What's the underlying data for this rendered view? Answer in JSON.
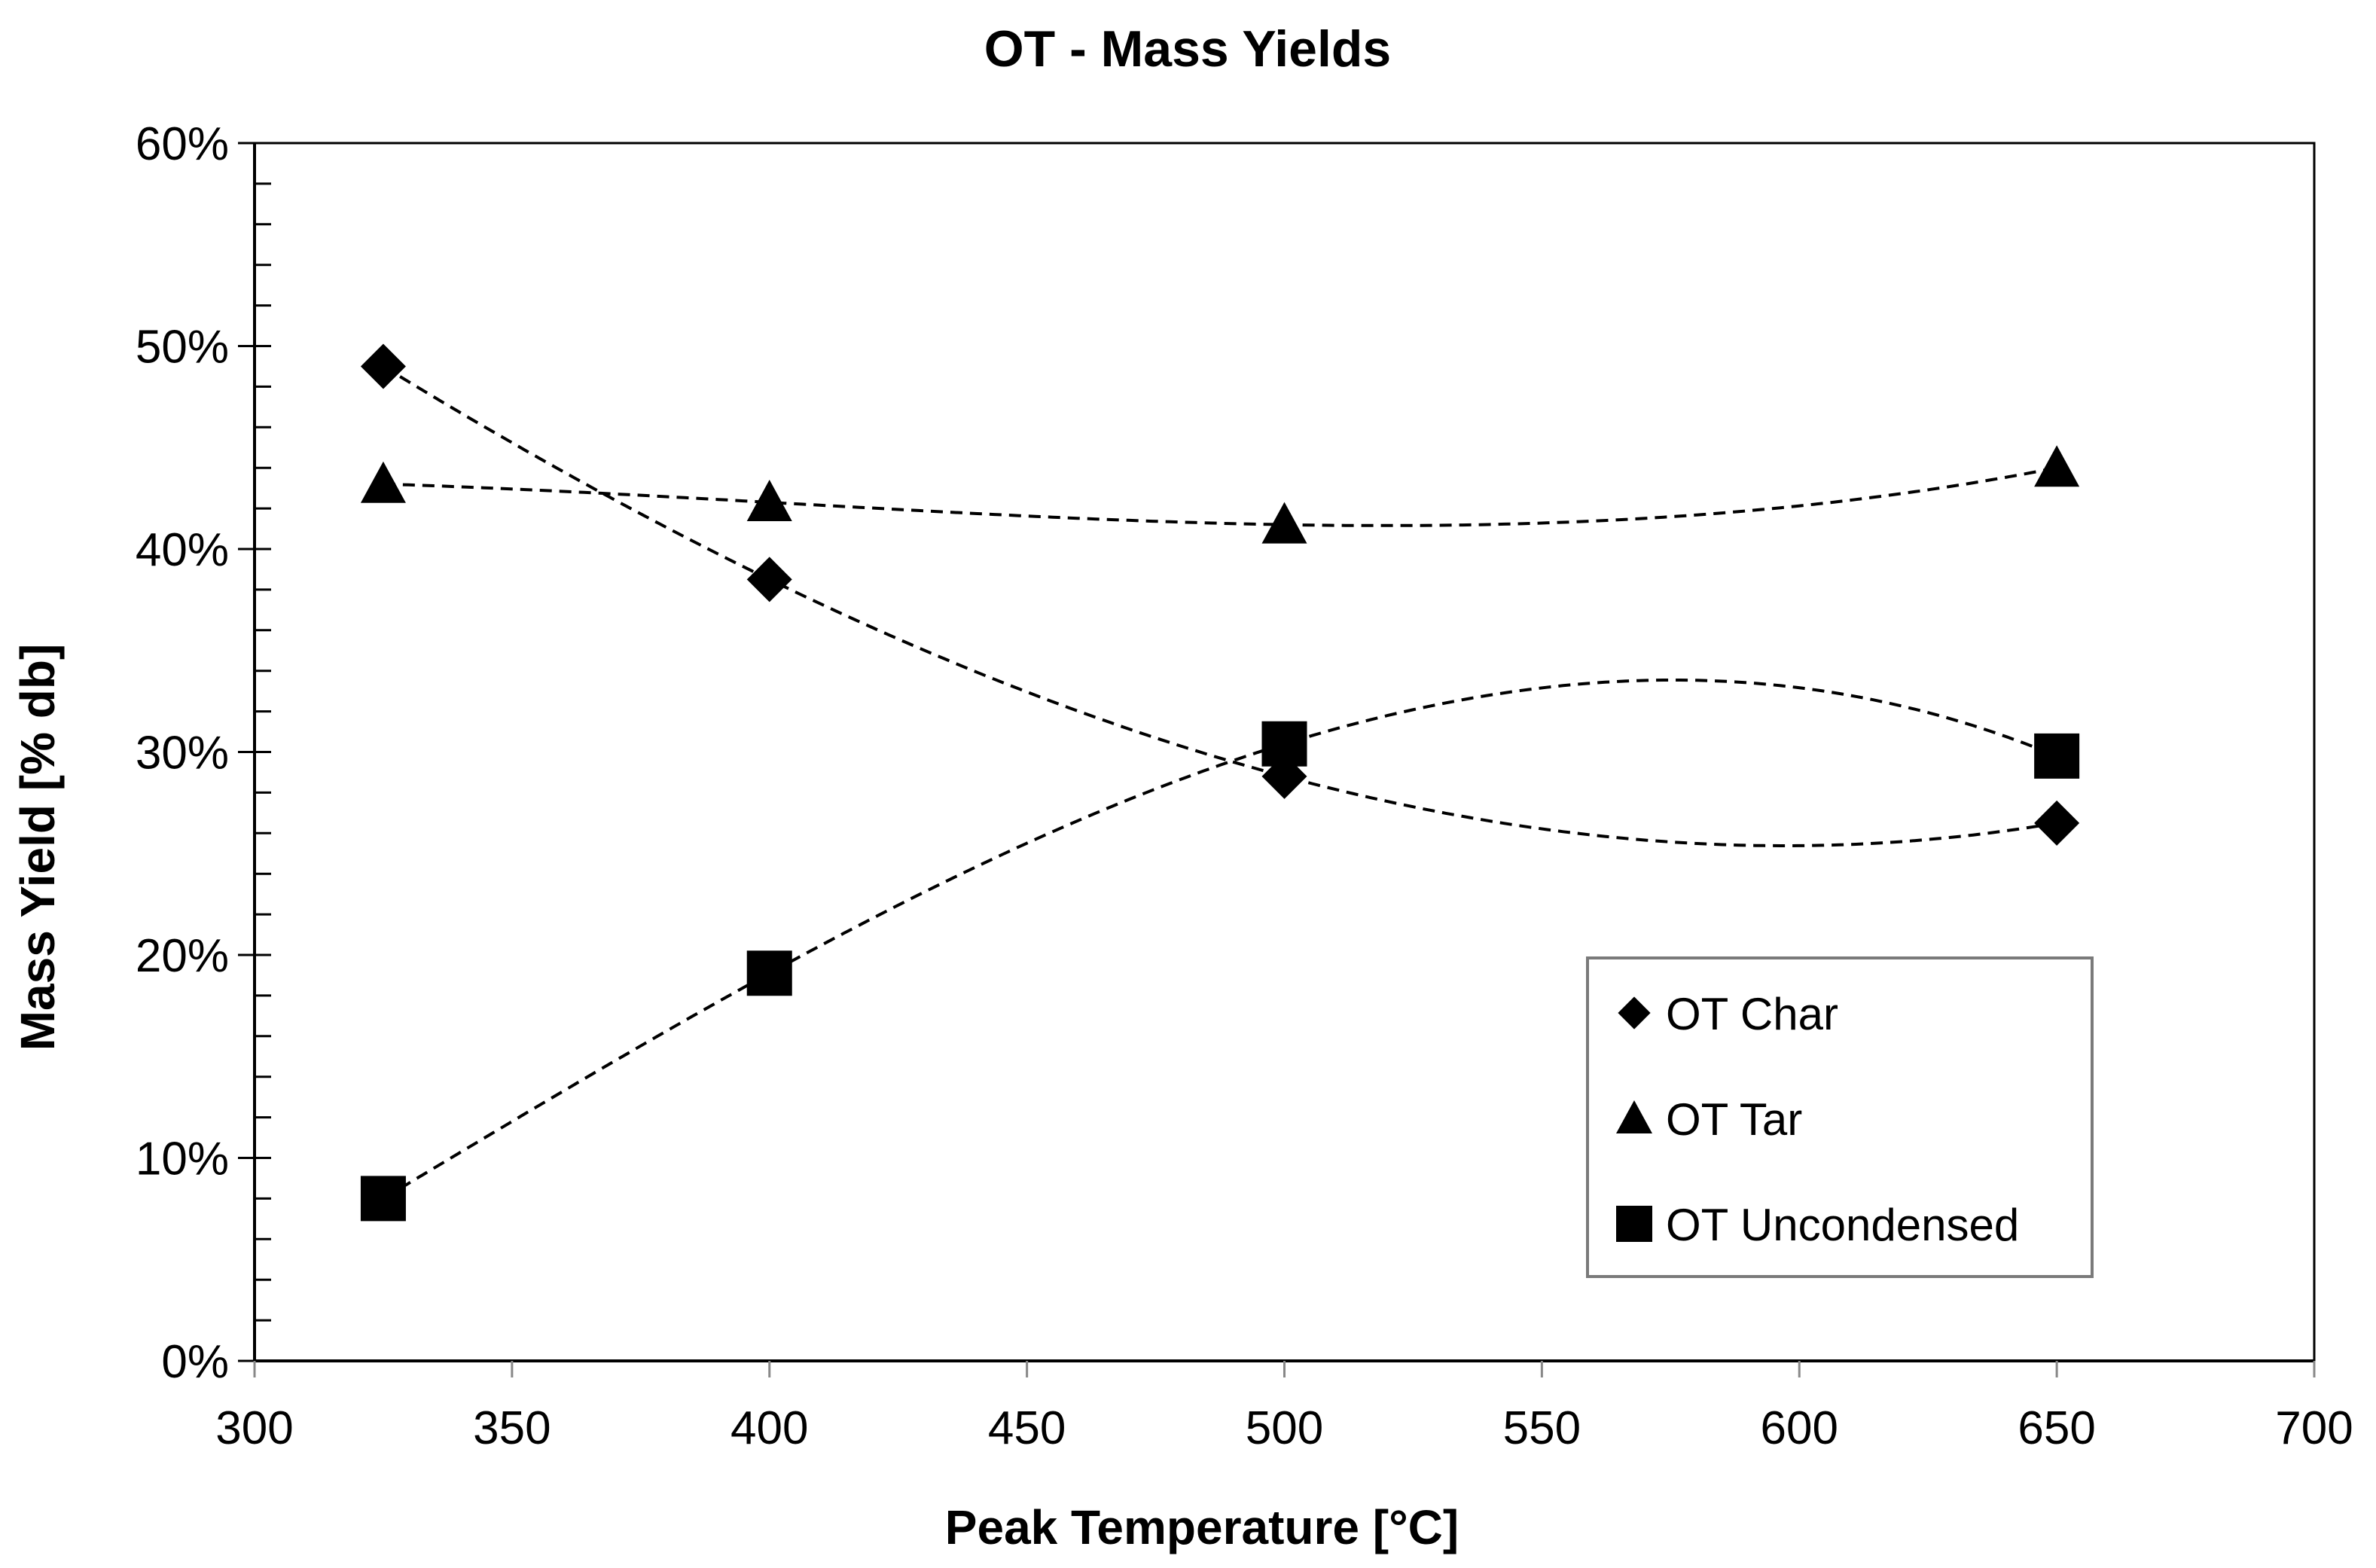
{
  "chart_data": {
    "type": "scatter",
    "title": "OT - Mass Yields",
    "xlabel": "Peak Temperature [°C]",
    "ylabel": "Mass  Yield [% db]",
    "xlim": [
      300,
      700
    ],
    "ylim": [
      0,
      60
    ],
    "x_ticks": [
      "300",
      "350",
      "400",
      "450",
      "500",
      "550",
      "600",
      "650",
      "700"
    ],
    "y_ticks": [
      "0%",
      "10%",
      "20%",
      "30%",
      "40%",
      "50%",
      "60%"
    ],
    "grid": false,
    "legend_position": "bottom-right inside plot",
    "trendlines": "dashed polynomial",
    "series": [
      {
        "name": "OT Char",
        "marker": "diamond",
        "x": [
          325,
          400,
          500,
          650
        ],
        "y": [
          49.0,
          38.5,
          28.8,
          26.5
        ]
      },
      {
        "name": "OT Tar",
        "marker": "triangle",
        "x": [
          325,
          400,
          500,
          650
        ],
        "y": [
          43.2,
          42.3,
          41.2,
          44.0
        ]
      },
      {
        "name": "OT Uncondensed",
        "marker": "square",
        "x": [
          325,
          400,
          500,
          650
        ],
        "y": [
          8.0,
          19.1,
          30.4,
          29.8
        ]
      }
    ],
    "colors": {
      "marker": "#000000",
      "axis": "#000000",
      "legend_border": "#7a7a7a"
    }
  }
}
